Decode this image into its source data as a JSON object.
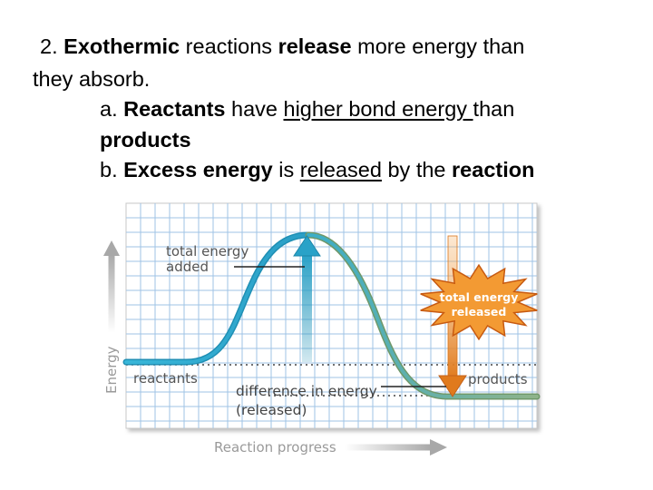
{
  "heading": {
    "line1": {
      "number": "2. ",
      "bold1": "Exothermic",
      "mid": " reactions ",
      "bold2": "release",
      "tail": " more energy than"
    },
    "line2": {
      "text": "they   absorb."
    },
    "line3": {
      "prefix": "a. ",
      "bold": "Reactants",
      "mid": " have ",
      "underlined": "higher bond energy ",
      "tail": "than"
    },
    "line4": {
      "bold": "products"
    },
    "line5": {
      "prefix": "b. ",
      "bold1": "Excess energy",
      "mid": " is ",
      "underlined": "released",
      "mid2": " by the ",
      "bold2": "reaction"
    }
  },
  "diagram": {
    "labels": {
      "total_added_1": "total energy",
      "total_added_2": "added",
      "burst_1": "total energy",
      "burst_2": "released",
      "reactants": "reactants",
      "products": "products",
      "difference_1": "difference in energy",
      "difference_2": "(released)",
      "y_axis": "Energy",
      "x_axis": "Reaction progress"
    },
    "colors": {
      "grid_line": "#9fc3e6",
      "curve_rise": "#2fa7cf",
      "curve_fall": "#8fb38a",
      "added_arrow": "#29a2c8",
      "released_arrow": "#ee8b2b",
      "burst": "#f39a33",
      "burst_dark": "#c75a11",
      "axis_arrow": "#a8a8a8",
      "label_text": "#555555"
    }
  }
}
